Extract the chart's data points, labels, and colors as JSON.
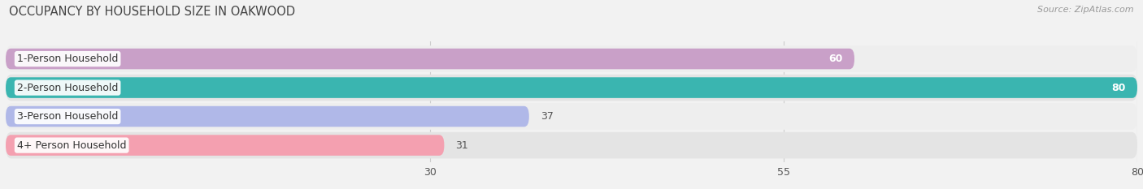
{
  "title": "OCCUPANCY BY HOUSEHOLD SIZE IN OAKWOOD",
  "source": "Source: ZipAtlas.com",
  "categories": [
    "1-Person Household",
    "2-Person Household",
    "3-Person Household",
    "4+ Person Household"
  ],
  "values": [
    60,
    80,
    37,
    31
  ],
  "bar_colors": [
    "#c9a0c8",
    "#3ab5b0",
    "#b0b8e8",
    "#f4a0b0"
  ],
  "background_color": "#f2f2f2",
  "row_bg_color": "#e8e8e8",
  "xlim": [
    0,
    80
  ],
  "xticks": [
    30,
    55,
    80
  ],
  "label_fontsize": 9,
  "title_fontsize": 10.5,
  "source_fontsize": 8,
  "value_label_inside": [
    true,
    true,
    false,
    false
  ],
  "bar_height": 0.72,
  "row_colors": [
    "#eeeeee",
    "#e4e4e4",
    "#eeeeee",
    "#e4e4e4"
  ]
}
